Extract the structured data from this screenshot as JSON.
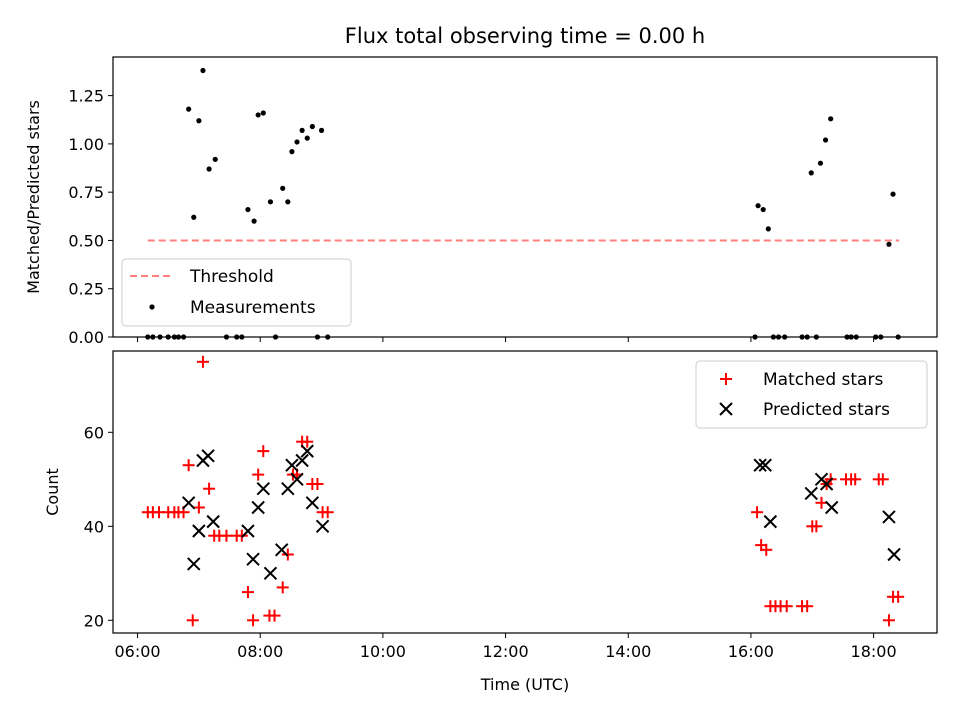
{
  "chart_data": [
    {
      "type": "scatter",
      "title": "Flux total observing time = 0.00 h",
      "ylabel": "Matched/Predicted stars",
      "xlabel": "",
      "xlim": [
        "05:36",
        "19:02"
      ],
      "ylim": [
        0,
        1.45
      ],
      "yticks": [
        0.0,
        0.25,
        0.5,
        0.75,
        1.0,
        1.25
      ],
      "ytick_labels": [
        "0.00",
        "0.25",
        "0.50",
        "0.75",
        "1.00",
        "1.25"
      ],
      "xticks": [
        "06:00",
        "08:00",
        "10:00",
        "12:00",
        "14:00",
        "16:00",
        "18:00"
      ],
      "grid": false,
      "legend_position": "lower-left",
      "threshold": {
        "name": "Threshold",
        "value": 0.5,
        "x_range": [
          "06:10",
          "18:25"
        ],
        "color": "#ff7f7f",
        "style": "dashed"
      },
      "series": [
        {
          "name": "Measurements",
          "color": "#000000",
          "marker": "dot",
          "points": [
            [
              "06:10",
              0
            ],
            [
              "06:15",
              0
            ],
            [
              "06:22",
              0
            ],
            [
              "06:30",
              0
            ],
            [
              "06:36",
              0
            ],
            [
              "06:40",
              0
            ],
            [
              "06:45",
              0
            ],
            [
              "06:50",
              1.18
            ],
            [
              "06:55",
              0.62
            ],
            [
              "07:00",
              1.12
            ],
            [
              "07:04",
              1.38
            ],
            [
              "07:10",
              0.87
            ],
            [
              "07:16",
              0.92
            ],
            [
              "07:27",
              0
            ],
            [
              "07:37",
              0
            ],
            [
              "07:42",
              0
            ],
            [
              "07:48",
              0.66
            ],
            [
              "07:54",
              0.6
            ],
            [
              "07:58",
              1.15
            ],
            [
              "08:03",
              1.16
            ],
            [
              "08:10",
              0.7
            ],
            [
              "08:15",
              0
            ],
            [
              "08:22",
              0.77
            ],
            [
              "08:27",
              0.7
            ],
            [
              "08:31",
              0.96
            ],
            [
              "08:36",
              1.01
            ],
            [
              "08:41",
              1.07
            ],
            [
              "08:46",
              1.03
            ],
            [
              "08:51",
              1.09
            ],
            [
              "08:56",
              0
            ],
            [
              "09:00",
              1.07
            ],
            [
              "09:06",
              0
            ],
            [
              "16:04",
              0
            ],
            [
              "16:07",
              0.68
            ],
            [
              "16:12",
              0.66
            ],
            [
              "16:17",
              0.56
            ],
            [
              "16:22",
              0
            ],
            [
              "16:27",
              0
            ],
            [
              "16:33",
              0
            ],
            [
              "16:50",
              0
            ],
            [
              "16:55",
              0
            ],
            [
              "16:59",
              0.85
            ],
            [
              "17:04",
              0
            ],
            [
              "17:08",
              0.9
            ],
            [
              "17:13",
              1.02
            ],
            [
              "17:18",
              1.13
            ],
            [
              "17:34",
              0
            ],
            [
              "17:38",
              0
            ],
            [
              "17:43",
              0
            ],
            [
              "18:02",
              0
            ],
            [
              "18:07",
              0
            ],
            [
              "18:15",
              0.48
            ],
            [
              "18:19",
              0.74
            ],
            [
              "18:24",
              0
            ]
          ]
        }
      ]
    },
    {
      "type": "scatter",
      "title": "",
      "xlabel": "Time (UTC)",
      "ylabel": "Count",
      "xlim": [
        "05:36",
        "19:02"
      ],
      "ylim": [
        17.3,
        77.3
      ],
      "yticks": [
        20,
        40,
        60
      ],
      "ytick_labels": [
        "20",
        "40",
        "60"
      ],
      "xticks": [
        "06:00",
        "08:00",
        "10:00",
        "12:00",
        "14:00",
        "16:00",
        "18:00"
      ],
      "grid": false,
      "legend_position": "top-right",
      "series": [
        {
          "name": "Matched stars",
          "color": "#ff0000",
          "marker": "plus",
          "points": [
            [
              "06:10",
              43
            ],
            [
              "06:15",
              43
            ],
            [
              "06:21",
              43
            ],
            [
              "06:30",
              43
            ],
            [
              "06:36",
              43
            ],
            [
              "06:40",
              43
            ],
            [
              "06:45",
              43
            ],
            [
              "06:50",
              53
            ],
            [
              "06:54",
              20
            ],
            [
              "07:00",
              44
            ],
            [
              "07:04",
              75
            ],
            [
              "07:10",
              48
            ],
            [
              "07:15",
              38
            ],
            [
              "07:20",
              38
            ],
            [
              "07:27",
              38
            ],
            [
              "07:37",
              38
            ],
            [
              "07:42",
              38
            ],
            [
              "07:48",
              26
            ],
            [
              "07:53",
              20
            ],
            [
              "07:58",
              51
            ],
            [
              "08:03",
              56
            ],
            [
              "08:09",
              21
            ],
            [
              "08:14",
              21
            ],
            [
              "08:22",
              27
            ],
            [
              "08:27",
              34
            ],
            [
              "08:32",
              51
            ],
            [
              "08:36",
              51
            ],
            [
              "08:41",
              58
            ],
            [
              "08:46",
              58
            ],
            [
              "08:51",
              49
            ],
            [
              "08:56",
              49
            ],
            [
              "09:01",
              43
            ],
            [
              "09:06",
              43
            ],
            [
              "16:06",
              43
            ],
            [
              "16:10",
              36
            ],
            [
              "16:15",
              35
            ],
            [
              "16:19",
              23
            ],
            [
              "16:24",
              23
            ],
            [
              "16:29",
              23
            ],
            [
              "16:35",
              23
            ],
            [
              "16:50",
              23
            ],
            [
              "16:55",
              23
            ],
            [
              "17:00",
              40
            ],
            [
              "17:04",
              40
            ],
            [
              "17:09",
              45
            ],
            [
              "17:14",
              49
            ],
            [
              "17:18",
              50
            ],
            [
              "17:33",
              50
            ],
            [
              "17:38",
              50
            ],
            [
              "17:42",
              50
            ],
            [
              "18:05",
              50
            ],
            [
              "18:09",
              50
            ],
            [
              "18:15",
              20
            ],
            [
              "18:19",
              25
            ],
            [
              "18:24",
              25
            ]
          ]
        },
        {
          "name": "Predicted stars",
          "color": "#000000",
          "marker": "x",
          "points": [
            [
              "06:50",
              45
            ],
            [
              "06:55",
              32
            ],
            [
              "07:00",
              39
            ],
            [
              "07:04",
              54
            ],
            [
              "07:09",
              55
            ],
            [
              "07:14",
              41
            ],
            [
              "07:48",
              39
            ],
            [
              "07:53",
              33
            ],
            [
              "07:58",
              44
            ],
            [
              "08:03",
              48
            ],
            [
              "08:10",
              30
            ],
            [
              "08:21",
              35
            ],
            [
              "08:27",
              48
            ],
            [
              "08:31",
              53
            ],
            [
              "08:36",
              50
            ],
            [
              "08:41",
              54
            ],
            [
              "08:46",
              56
            ],
            [
              "08:51",
              45
            ],
            [
              "09:01",
              40
            ],
            [
              "16:09",
              53
            ],
            [
              "16:14",
              53
            ],
            [
              "16:19",
              41
            ],
            [
              "16:59",
              47
            ],
            [
              "17:09",
              50
            ],
            [
              "17:14",
              49
            ],
            [
              "17:19",
              44
            ],
            [
              "18:15",
              42
            ],
            [
              "18:20",
              34
            ]
          ]
        }
      ]
    }
  ]
}
